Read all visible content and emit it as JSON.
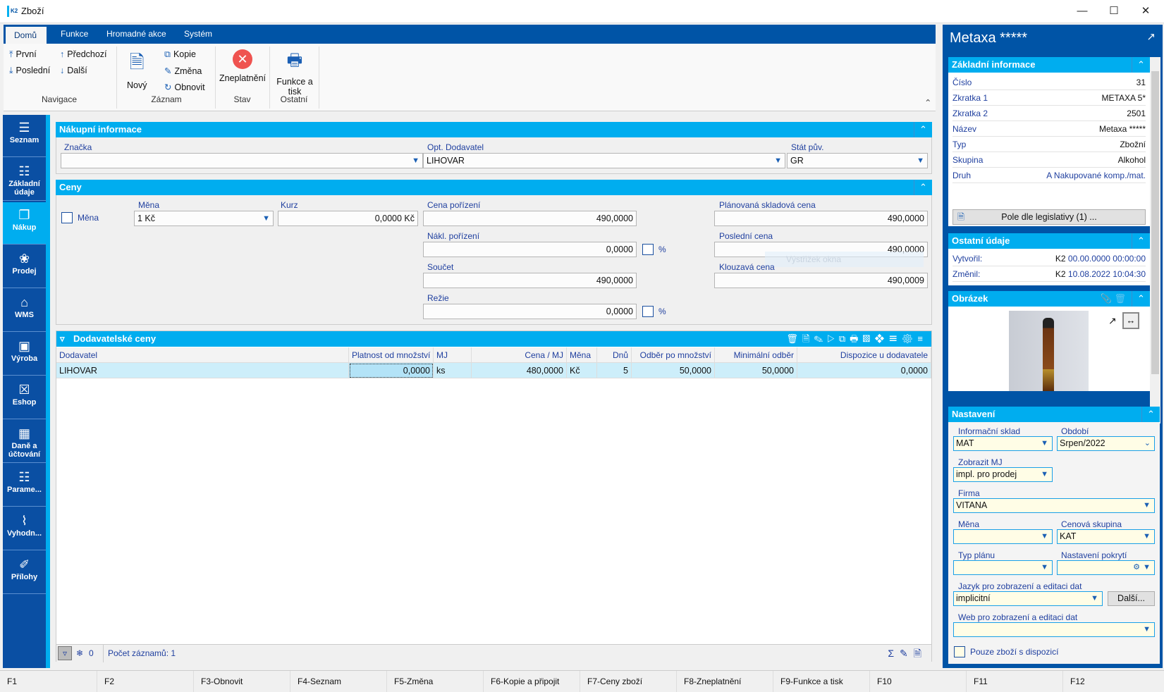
{
  "window": {
    "title": "Zboží",
    "logo": "K2",
    "controls": [
      "minimize",
      "maximize",
      "close"
    ]
  },
  "ribbon": {
    "tabs": [
      {
        "label": "Domů",
        "active": true
      },
      {
        "label": "Funkce"
      },
      {
        "label": "Hromadné akce"
      },
      {
        "label": "Systém"
      }
    ],
    "navigace": {
      "label": "Navigace",
      "first": "První",
      "prev": "Předchozí",
      "last": "Poslední",
      "next": "Další"
    },
    "zaznam": {
      "label": "Záznam",
      "new": "Nový",
      "copy": "Kopie",
      "change": "Změna",
      "refresh": "Obnovit"
    },
    "stav": {
      "label": "Stav",
      "invalidate": "Zneplatnění"
    },
    "ostatni": {
      "label": "Ostatní",
      "print_line1": "Funkce a",
      "print_line2": "tisk"
    }
  },
  "sidebar": {
    "items": [
      {
        "label": "Seznam",
        "icon": "list-icon"
      },
      {
        "label": "Základní údaje",
        "icon": "details-icon"
      },
      {
        "label": "Nákup",
        "icon": "purchase-icon",
        "active": true
      },
      {
        "label": "Prodej",
        "icon": "sale-icon"
      },
      {
        "label": "WMS",
        "icon": "warehouse-icon"
      },
      {
        "label": "Výroba",
        "icon": "box-icon"
      },
      {
        "label": "Eshop",
        "icon": "cart-icon"
      },
      {
        "label": "Daně a účtování",
        "icon": "calendar-icon"
      },
      {
        "label": "Parame...",
        "icon": "grid-icon"
      },
      {
        "label": "Vyhodn...",
        "icon": "chart-icon"
      },
      {
        "label": "Přílohy",
        "icon": "paperclip-icon"
      }
    ]
  },
  "nakupni": {
    "title": "Nákupní informace",
    "znacka_label": "Značka",
    "znacka": "",
    "dodavatel_label": "Opt. Dodavatel",
    "dodavatel": "LIHOVAR",
    "stat_label": "Stát pův.",
    "stat": "GR"
  },
  "ceny": {
    "title": "Ceny",
    "mena_check_label": "Měna",
    "mena_label": "Měna",
    "mena": "1 Kč",
    "kurz_label": "Kurz",
    "kurz": "0,0000 Kč",
    "cena_por_label": "Cena pořízení",
    "cena_por": "490,0000",
    "nakl_label": "Nákl. pořízení",
    "nakl": "0,0000",
    "pct": "%",
    "soucet_label": "Součet",
    "soucet": "490,0000",
    "rezie_label": "Režie",
    "rezie": "0,0000",
    "plan_label": "Plánovaná skladová cena",
    "plan": "490,0000",
    "posl_label": "Poslední cena",
    "posl": "490,0000",
    "klouz_label": "Klouzavá cena",
    "klouz": "490,0009",
    "tooltip": "Výstřižek okna"
  },
  "dodavatelske": {
    "title": "Dodavatelské ceny",
    "columns": [
      "Dodavatel",
      "Platnost od množství",
      "MJ",
      "Cena / MJ",
      "Měna",
      "Dnů",
      "Odběr po množství",
      "Minimální odběr",
      "Dispozice u dodavatele"
    ],
    "rows": [
      [
        "LIHOVAR",
        "0,0000",
        "ks",
        "480,0000",
        "Kč",
        "5",
        "50,0000",
        "50,0000",
        "0,0000"
      ]
    ],
    "footer": {
      "filter_count": "0",
      "record_count": "Počet záznamů: 1"
    }
  },
  "fkeys": [
    "F1",
    "F2",
    "F3-Obnovit",
    "F4-Seznam",
    "F5-Změna",
    "F6-Kopie a připojit",
    "F7-Ceny zboží",
    "F8-Zneplatnění",
    "F9-Funkce a tisk",
    "F10",
    "F11",
    "F12"
  ],
  "right": {
    "title": "Metaxa *****",
    "zakladni": {
      "title": "Základní informace",
      "rows": [
        {
          "k": "Číslo",
          "v": "31"
        },
        {
          "k": "Zkratka 1",
          "v": "METAXA 5*"
        },
        {
          "k": "Zkratka 2",
          "v": "2501"
        },
        {
          "k": "Název",
          "v": "Metaxa *****"
        },
        {
          "k": "Typ",
          "v": "Zbožní"
        },
        {
          "k": "Skupina",
          "v": "Alkohol"
        },
        {
          "k": "Druh",
          "v": "A Nakupované komp./mat."
        }
      ],
      "legis_button": "Pole dle legislativy (1) ..."
    },
    "ostatni": {
      "title": "Ostatní údaje",
      "created_label": "Vytvořil:",
      "created_user": "K2",
      "created_date": "00.00.0000 00:00:00",
      "changed_label": "Změnil:",
      "changed_user": "K2",
      "changed_date": "10.08.2022 10:04:30"
    },
    "obrazek": {
      "title": "Obrázek"
    },
    "nastaveni": {
      "title": "Nastavení",
      "sklad_label": "Informační sklad",
      "sklad": "MAT",
      "obdobi_label": "Období",
      "obdobi": "Srpen/2022",
      "mj_label": "Zobrazit MJ",
      "mj": "impl. pro prodej",
      "firma_label": "Firma",
      "firma": "VITANA",
      "mena_label": "Měna",
      "mena": "",
      "censkup_label": "Cenová skupina",
      "censkup": "KAT",
      "typplanu_label": "Typ plánu",
      "typplanu": "",
      "pokryti_label": "Nastavení pokrytí",
      "pokryti": "",
      "jazyk_label": "Jazyk pro zobrazení a editaci dat",
      "jazyk": "implicitní",
      "dalsi": "Další...",
      "web_label": "Web pro zobrazení a editaci dat",
      "web": "",
      "dispozice_label": "Pouze zboží s dispozicí"
    }
  }
}
